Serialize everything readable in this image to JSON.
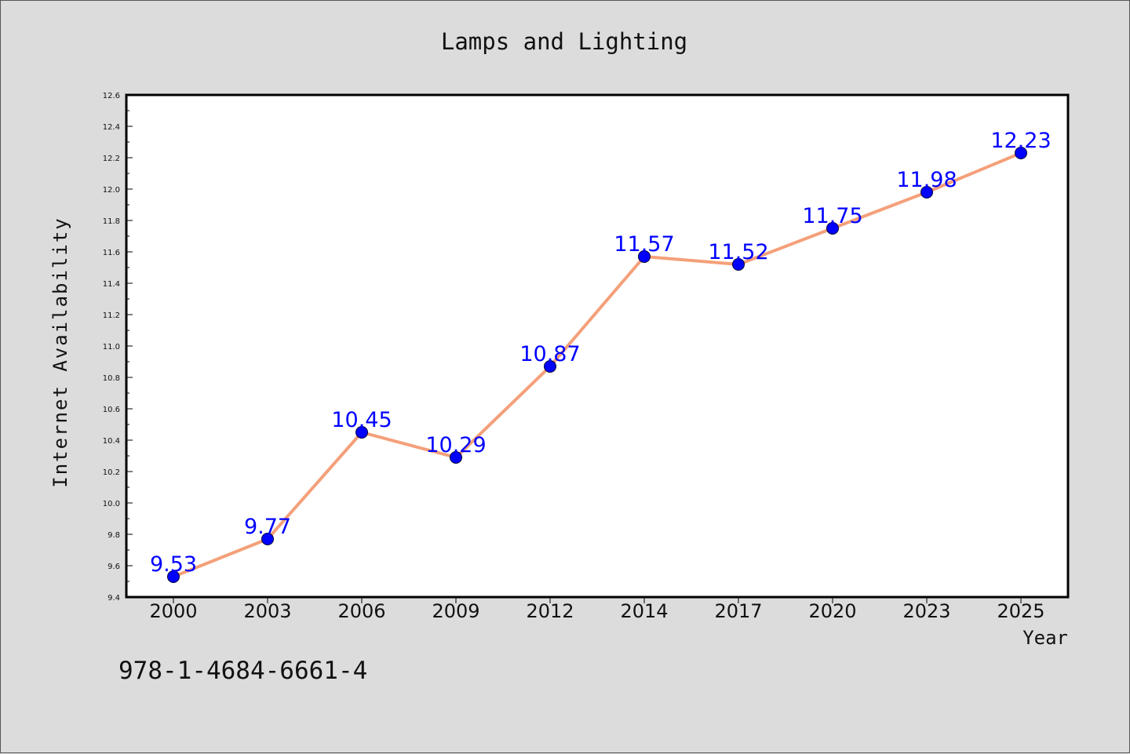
{
  "chart_data": {
    "type": "line",
    "title": "Lamps and Lighting",
    "xlabel": "Year",
    "ylabel": "Internet Availability",
    "categories": [
      "2000",
      "2003",
      "2006",
      "2009",
      "2012",
      "2014",
      "2017",
      "2020",
      "2023",
      "2025"
    ],
    "series": [
      {
        "values": [
          9.53,
          9.77,
          10.45,
          10.29,
          10.87,
          11.57,
          11.52,
          11.75,
          11.98,
          12.23
        ],
        "data_labels": [
          "9.53",
          "9.77",
          "10.45",
          "10.29",
          "10.87",
          "11.57",
          "11.52",
          "11.75",
          "11.98",
          "12.23"
        ]
      }
    ],
    "yticks": [
      "9.4",
      "9.6",
      "9.8",
      "10.0",
      "10.2",
      "10.4",
      "10.6",
      "10.8",
      "11.0",
      "11.2",
      "11.4",
      "11.6",
      "11.8",
      "12.0",
      "12.2",
      "12.4",
      "12.6"
    ],
    "ylim": [
      9.4,
      12.6
    ],
    "grid": false,
    "line_color": "#f4a07a",
    "marker_color": "#0000ff",
    "label_color": "#0000ff"
  },
  "annotation": {
    "isbn": "978-1-4684-6661-4"
  }
}
